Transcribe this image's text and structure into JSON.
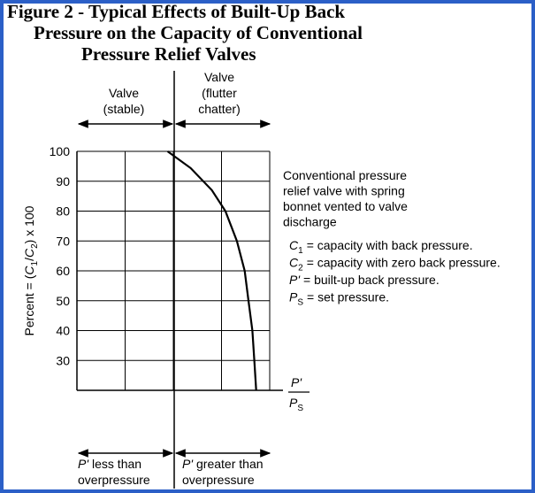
{
  "chart_data": {
    "type": "line",
    "title": [
      "Figure 2 - Typical Effects of Built-Up Back",
      "Pressure on the Capacity of Conventional",
      "Pressure Relief Valves"
    ],
    "ylabel": [
      {
        "text": "Percent = ("
      },
      {
        "text": "C",
        "italic": true
      },
      {
        "text": "1",
        "sub": true
      },
      {
        "text": "/"
      },
      {
        "text": "C",
        "italic": true
      },
      {
        "text": "2",
        "sub": true
      },
      {
        "text": ") x 100"
      }
    ],
    "xlabel": {
      "numerator": "P'",
      "denominator": "P",
      "denominator_sub": "S"
    },
    "ylim": [
      20,
      100
    ],
    "yticks": [
      30,
      40,
      50,
      60,
      70,
      80,
      90,
      100
    ],
    "xlim": [
      0,
      1
    ],
    "grid": true,
    "series": [
      {
        "color": "#000000",
        "x": [
          0.47,
          0.59,
          0.7,
          0.77,
          0.83,
          0.87,
          0.89,
          0.91,
          0.92,
          0.93
        ],
        "values": [
          100,
          94.4,
          87,
          80,
          70,
          60,
          50,
          40,
          30,
          20
        ]
      }
    ],
    "region_top_left": [
      "Valve",
      "(stable)"
    ],
    "region_top_right": [
      "Valve",
      "(flutter",
      "chatter)"
    ],
    "region_bottom_left": {
      "symbol": "P'",
      "text": "less than",
      "line2": "overpressure"
    },
    "region_bottom_right": {
      "symbol": "P'",
      "text": "greater than",
      "line2": "overpressure"
    },
    "note": [
      "Conventional pressure",
      "relief valve with spring",
      "bonnet vented to valve",
      "discharge"
    ],
    "definitions": [
      {
        "symbol": "C",
        "sub": "1",
        "text": "= capacity with back pressure."
      },
      {
        "symbol": "C",
        "sub": "2",
        "text": "= capacity with zero back pressure."
      },
      {
        "symbol": "P'",
        "sub": "",
        "text": "= built-up back pressure."
      },
      {
        "symbol": "P",
        "sub": "S",
        "text": "= set pressure."
      }
    ]
  }
}
